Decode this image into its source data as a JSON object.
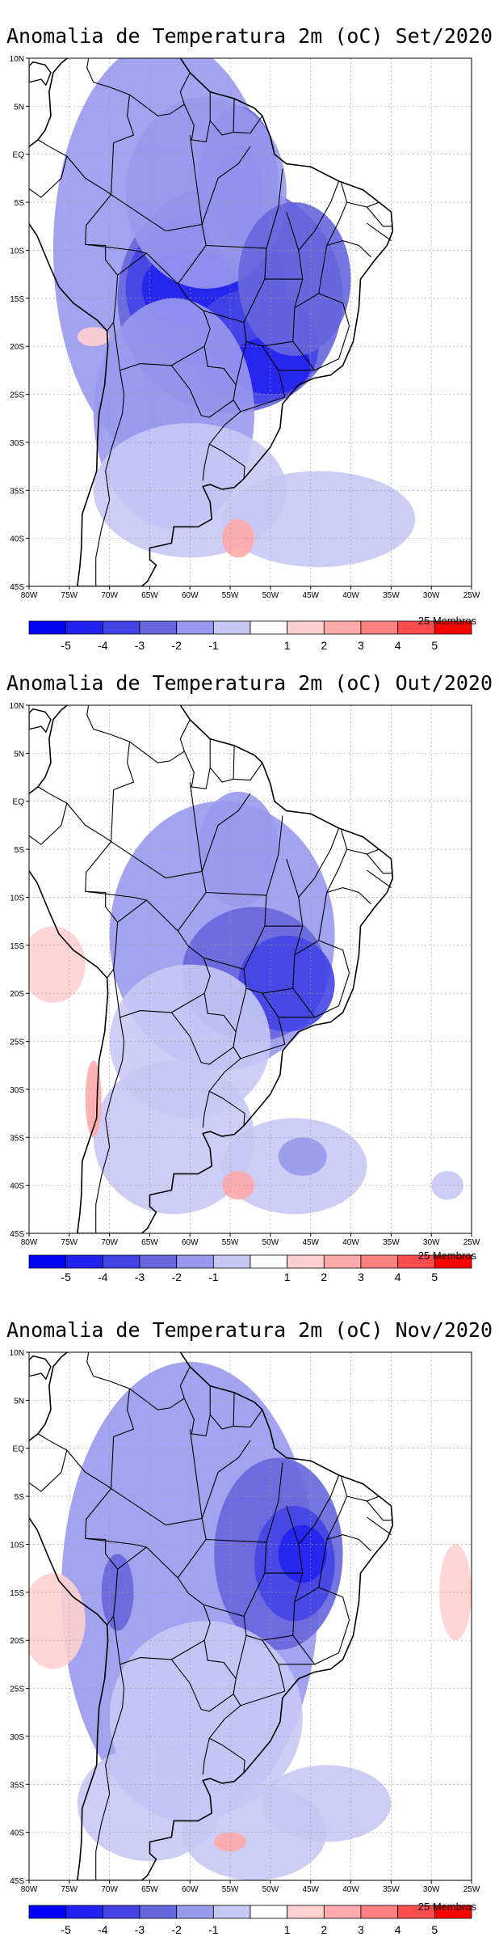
{
  "members_label": "25 Membros",
  "panels": [
    {
      "title": "Anomalia de Temperatura 2m (oC) Set/2020",
      "month": "Set"
    },
    {
      "title": "Anomalia de Temperatura 2m (oC) Out/2020",
      "month": "Out"
    },
    {
      "title": "Anomalia de Temperatura 2m (oC) Nov/2020",
      "month": "Nov"
    }
  ],
  "axes": {
    "lon_ticks": [
      "80W",
      "75W",
      "70W",
      "65W",
      "60W",
      "55W",
      "50W",
      "45W",
      "40W",
      "35W",
      "30W",
      "25W"
    ],
    "lat_ticks": [
      "10N",
      "5N",
      "EQ",
      "5S",
      "10S",
      "15S",
      "20S",
      "25S",
      "30S",
      "35S",
      "40S",
      "45S"
    ],
    "lon_range": [
      -80,
      -25
    ],
    "lat_range": [
      -45,
      10
    ]
  },
  "colorbar": {
    "labels": [
      "-5",
      "-4",
      "-3",
      "-2",
      "-1",
      "1",
      "2",
      "3",
      "4",
      "5"
    ],
    "colors": [
      "#0000ff",
      "#2222f0",
      "#4444e6",
      "#6666dd",
      "#9999ee",
      "#c8c8f5",
      "#ffffff",
      "#ffd0d0",
      "#ffaaaa",
      "#ff8080",
      "#ff4d4d",
      "#ff0000"
    ]
  }
}
